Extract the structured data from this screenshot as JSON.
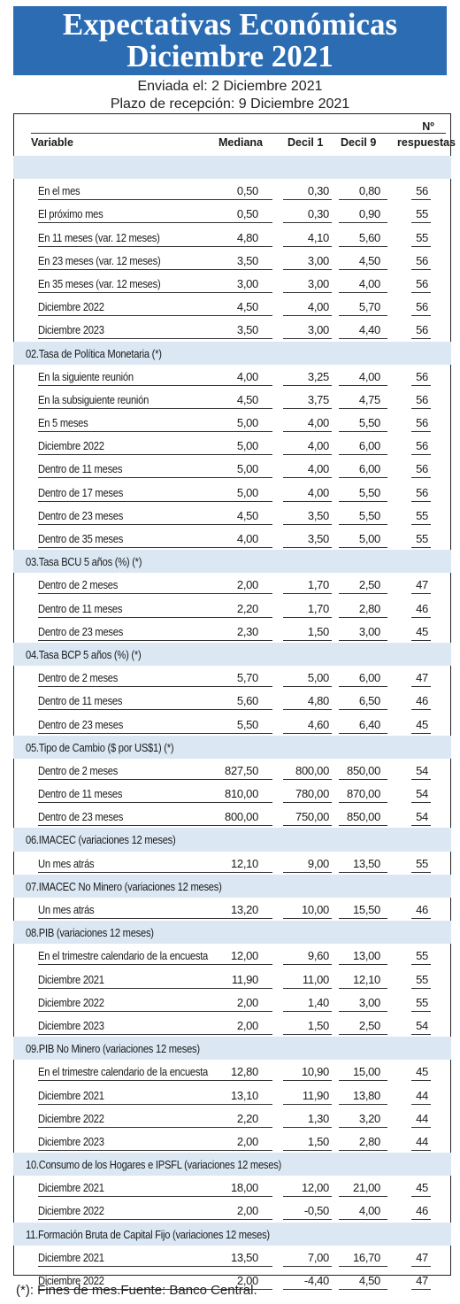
{
  "title_line1": "Expectativas Económicas",
  "title_line2": "Diciembre 2021",
  "sent_label": "Enviada el: 2 Diciembre 2021",
  "deadline_label": "Plazo de recepción: 9 Diciembre 2021",
  "headers": {
    "variable": "Variable",
    "mediana": "Mediana",
    "decil1": "Decil 1",
    "decil9": "Decil 9",
    "n_line1": "Nº",
    "n_line2": "respuestas"
  },
  "rows": [
    {
      "type": "section",
      "label": ""
    },
    {
      "type": "data",
      "label": "En el mes",
      "med": "0,50",
      "d1": "0,30",
      "d9": "0,80",
      "n": "56"
    },
    {
      "type": "data",
      "label": "El próximo mes",
      "med": "0,50",
      "d1": "0,30",
      "d9": "0,90",
      "n": "55"
    },
    {
      "type": "data",
      "label": "En 11 meses (var. 12 meses)",
      "med": "4,80",
      "d1": "4,10",
      "d9": "5,60",
      "n": "55"
    },
    {
      "type": "data",
      "label": "En 23 meses (var. 12 meses)",
      "med": "3,50",
      "d1": "3,00",
      "d9": "4,50",
      "n": "56"
    },
    {
      "type": "data",
      "label": "En 35 meses (var. 12 meses)",
      "med": "3,00",
      "d1": "3,00",
      "d9": "4,00",
      "n": "56"
    },
    {
      "type": "data",
      "label": "Diciembre 2022",
      "med": "4,50",
      "d1": "4,00",
      "d9": "5,70",
      "n": "56"
    },
    {
      "type": "data",
      "label": "Diciembre 2023",
      "med": "3,50",
      "d1": "3,00",
      "d9": "4,40",
      "n": "56"
    },
    {
      "type": "section",
      "label": "02.Tasa de Política Monetaria  (*)"
    },
    {
      "type": "data",
      "label": "En la siguiente reunión",
      "med": "4,00",
      "d1": "3,25",
      "d9": "4,00",
      "n": "56"
    },
    {
      "type": "data",
      "label": "En la subsiguiente reunión",
      "med": "4,50",
      "d1": "3,75",
      "d9": "4,75",
      "n": "56"
    },
    {
      "type": "data",
      "label": "En 5 meses",
      "med": "5,00",
      "d1": "4,00",
      "d9": "5,50",
      "n": "56"
    },
    {
      "type": "data",
      "label": "Diciembre 2022",
      "med": "5,00",
      "d1": "4,00",
      "d9": "6,00",
      "n": "56"
    },
    {
      "type": "data",
      "label": "Dentro de 11 meses",
      "med": "5,00",
      "d1": "4,00",
      "d9": "6,00",
      "n": "56"
    },
    {
      "type": "data",
      "label": "Dentro de 17 meses",
      "med": "5,00",
      "d1": "4,00",
      "d9": "5,50",
      "n": "56"
    },
    {
      "type": "data",
      "label": "Dentro de 23 meses",
      "med": "4,50",
      "d1": "3,50",
      "d9": "5,50",
      "n": "55"
    },
    {
      "type": "data",
      "label": "Dentro de 35 meses",
      "med": "4,00",
      "d1": "3,50",
      "d9": "5,00",
      "n": "55"
    },
    {
      "type": "section",
      "label": "03.Tasa BCU 5 años  (%)  (*)"
    },
    {
      "type": "data",
      "label": "Dentro de 2 meses",
      "med": "2,00",
      "d1": "1,70",
      "d9": "2,50",
      "n": "47"
    },
    {
      "type": "data",
      "label": "Dentro de 11 meses",
      "med": "2,20",
      "d1": "1,70",
      "d9": "2,80",
      "n": "46"
    },
    {
      "type": "data",
      "label": "Dentro de 23 meses",
      "med": "2,30",
      "d1": "1,50",
      "d9": "3,00",
      "n": "45"
    },
    {
      "type": "section",
      "label": "04.Tasa BCP 5 años  (%) (*)"
    },
    {
      "type": "data",
      "label": "Dentro de 2 meses",
      "med": "5,70",
      "d1": "5,00",
      "d9": "6,00",
      "n": "47"
    },
    {
      "type": "data",
      "label": "Dentro de 11 meses",
      "med": "5,60",
      "d1": "4,80",
      "d9": "6,50",
      "n": "46"
    },
    {
      "type": "data",
      "label": "Dentro de 23 meses",
      "med": "5,50",
      "d1": "4,60",
      "d9": "6,40",
      "n": "45"
    },
    {
      "type": "section",
      "label": "05.Tipo de Cambio  ($ por US$1) (*)"
    },
    {
      "type": "data",
      "label": "Dentro de 2 meses",
      "med": "827,50",
      "d1": "800,00",
      "d9": "850,00",
      "n": "54"
    },
    {
      "type": "data",
      "label": "Dentro de 11 meses",
      "med": "810,00",
      "d1": "780,00",
      "d9": "870,00",
      "n": "54"
    },
    {
      "type": "data",
      "label": "Dentro de 23 meses",
      "med": "800,00",
      "d1": "750,00",
      "d9": "850,00",
      "n": "54"
    },
    {
      "type": "section",
      "label": "06.IMACEC  (variaciones 12 meses)"
    },
    {
      "type": "data",
      "label": "Un mes atrás",
      "med": "12,10",
      "d1": "9,00",
      "d9": "13,50",
      "n": "55"
    },
    {
      "type": "section",
      "label": "07.IMACEC No Minero (variaciones 12 meses)"
    },
    {
      "type": "data",
      "label": "Un mes atrás",
      "med": "13,20",
      "d1": "10,00",
      "d9": "15,50",
      "n": "46"
    },
    {
      "type": "section",
      "label": "08.PIB  (variaciones 12 meses)"
    },
    {
      "type": "data",
      "label": "En el trimestre calendario de la encuesta",
      "med": "12,00",
      "d1": "9,60",
      "d9": "13,00",
      "n": "55"
    },
    {
      "type": "data",
      "label": "Diciembre 2021",
      "med": "11,90",
      "d1": "11,00",
      "d9": "12,10",
      "n": "55"
    },
    {
      "type": "data",
      "label": "Diciembre 2022",
      "med": "2,00",
      "d1": "1,40",
      "d9": "3,00",
      "n": "55"
    },
    {
      "type": "data",
      "label": "Diciembre 2023",
      "med": "2,00",
      "d1": "1,50",
      "d9": "2,50",
      "n": "54"
    },
    {
      "type": "section",
      "label": "09.PIB No Minero (variaciones 12 meses)"
    },
    {
      "type": "data",
      "label": "En el trimestre calendario de la encuesta",
      "med": "12,80",
      "d1": "10,90",
      "d9": "15,00",
      "n": "45"
    },
    {
      "type": "data",
      "label": "Diciembre 2021",
      "med": "13,10",
      "d1": "11,90",
      "d9": "13,80",
      "n": "44"
    },
    {
      "type": "data",
      "label": "Diciembre 2022",
      "med": "2,20",
      "d1": "1,30",
      "d9": "3,20",
      "n": "44"
    },
    {
      "type": "data",
      "label": "Diciembre 2023",
      "med": "2,00",
      "d1": "1,50",
      "d9": "2,80",
      "n": "44"
    },
    {
      "type": "section",
      "label": "10.Consumo de los Hogares e IPSFL  (variaciones 12 meses)"
    },
    {
      "type": "data",
      "label": "Diciembre 2021",
      "med": "18,00",
      "d1": "12,00",
      "d9": "21,00",
      "n": "45"
    },
    {
      "type": "data",
      "label": "Diciembre 2022",
      "med": "2,00",
      "d1": "-0,50",
      "d9": "4,00",
      "n": "46"
    },
    {
      "type": "section",
      "label": "11.Formación Bruta de Capital Fijo  (variaciones 12 meses)"
    },
    {
      "type": "data",
      "label": "Diciembre 2021",
      "med": "13,50",
      "d1": "7,00",
      "d9": "16,70",
      "n": "47"
    },
    {
      "type": "data",
      "label": "Diciembre 2022",
      "med": "2,00",
      "d1": "-4,40",
      "d9": "4,50",
      "n": "47"
    }
  ],
  "footnote": "(*): Fines de mes.Fuente: Banco Central.",
  "colors": {
    "banner": "#2b6cb3",
    "section_band": "#dbe8f4"
  }
}
